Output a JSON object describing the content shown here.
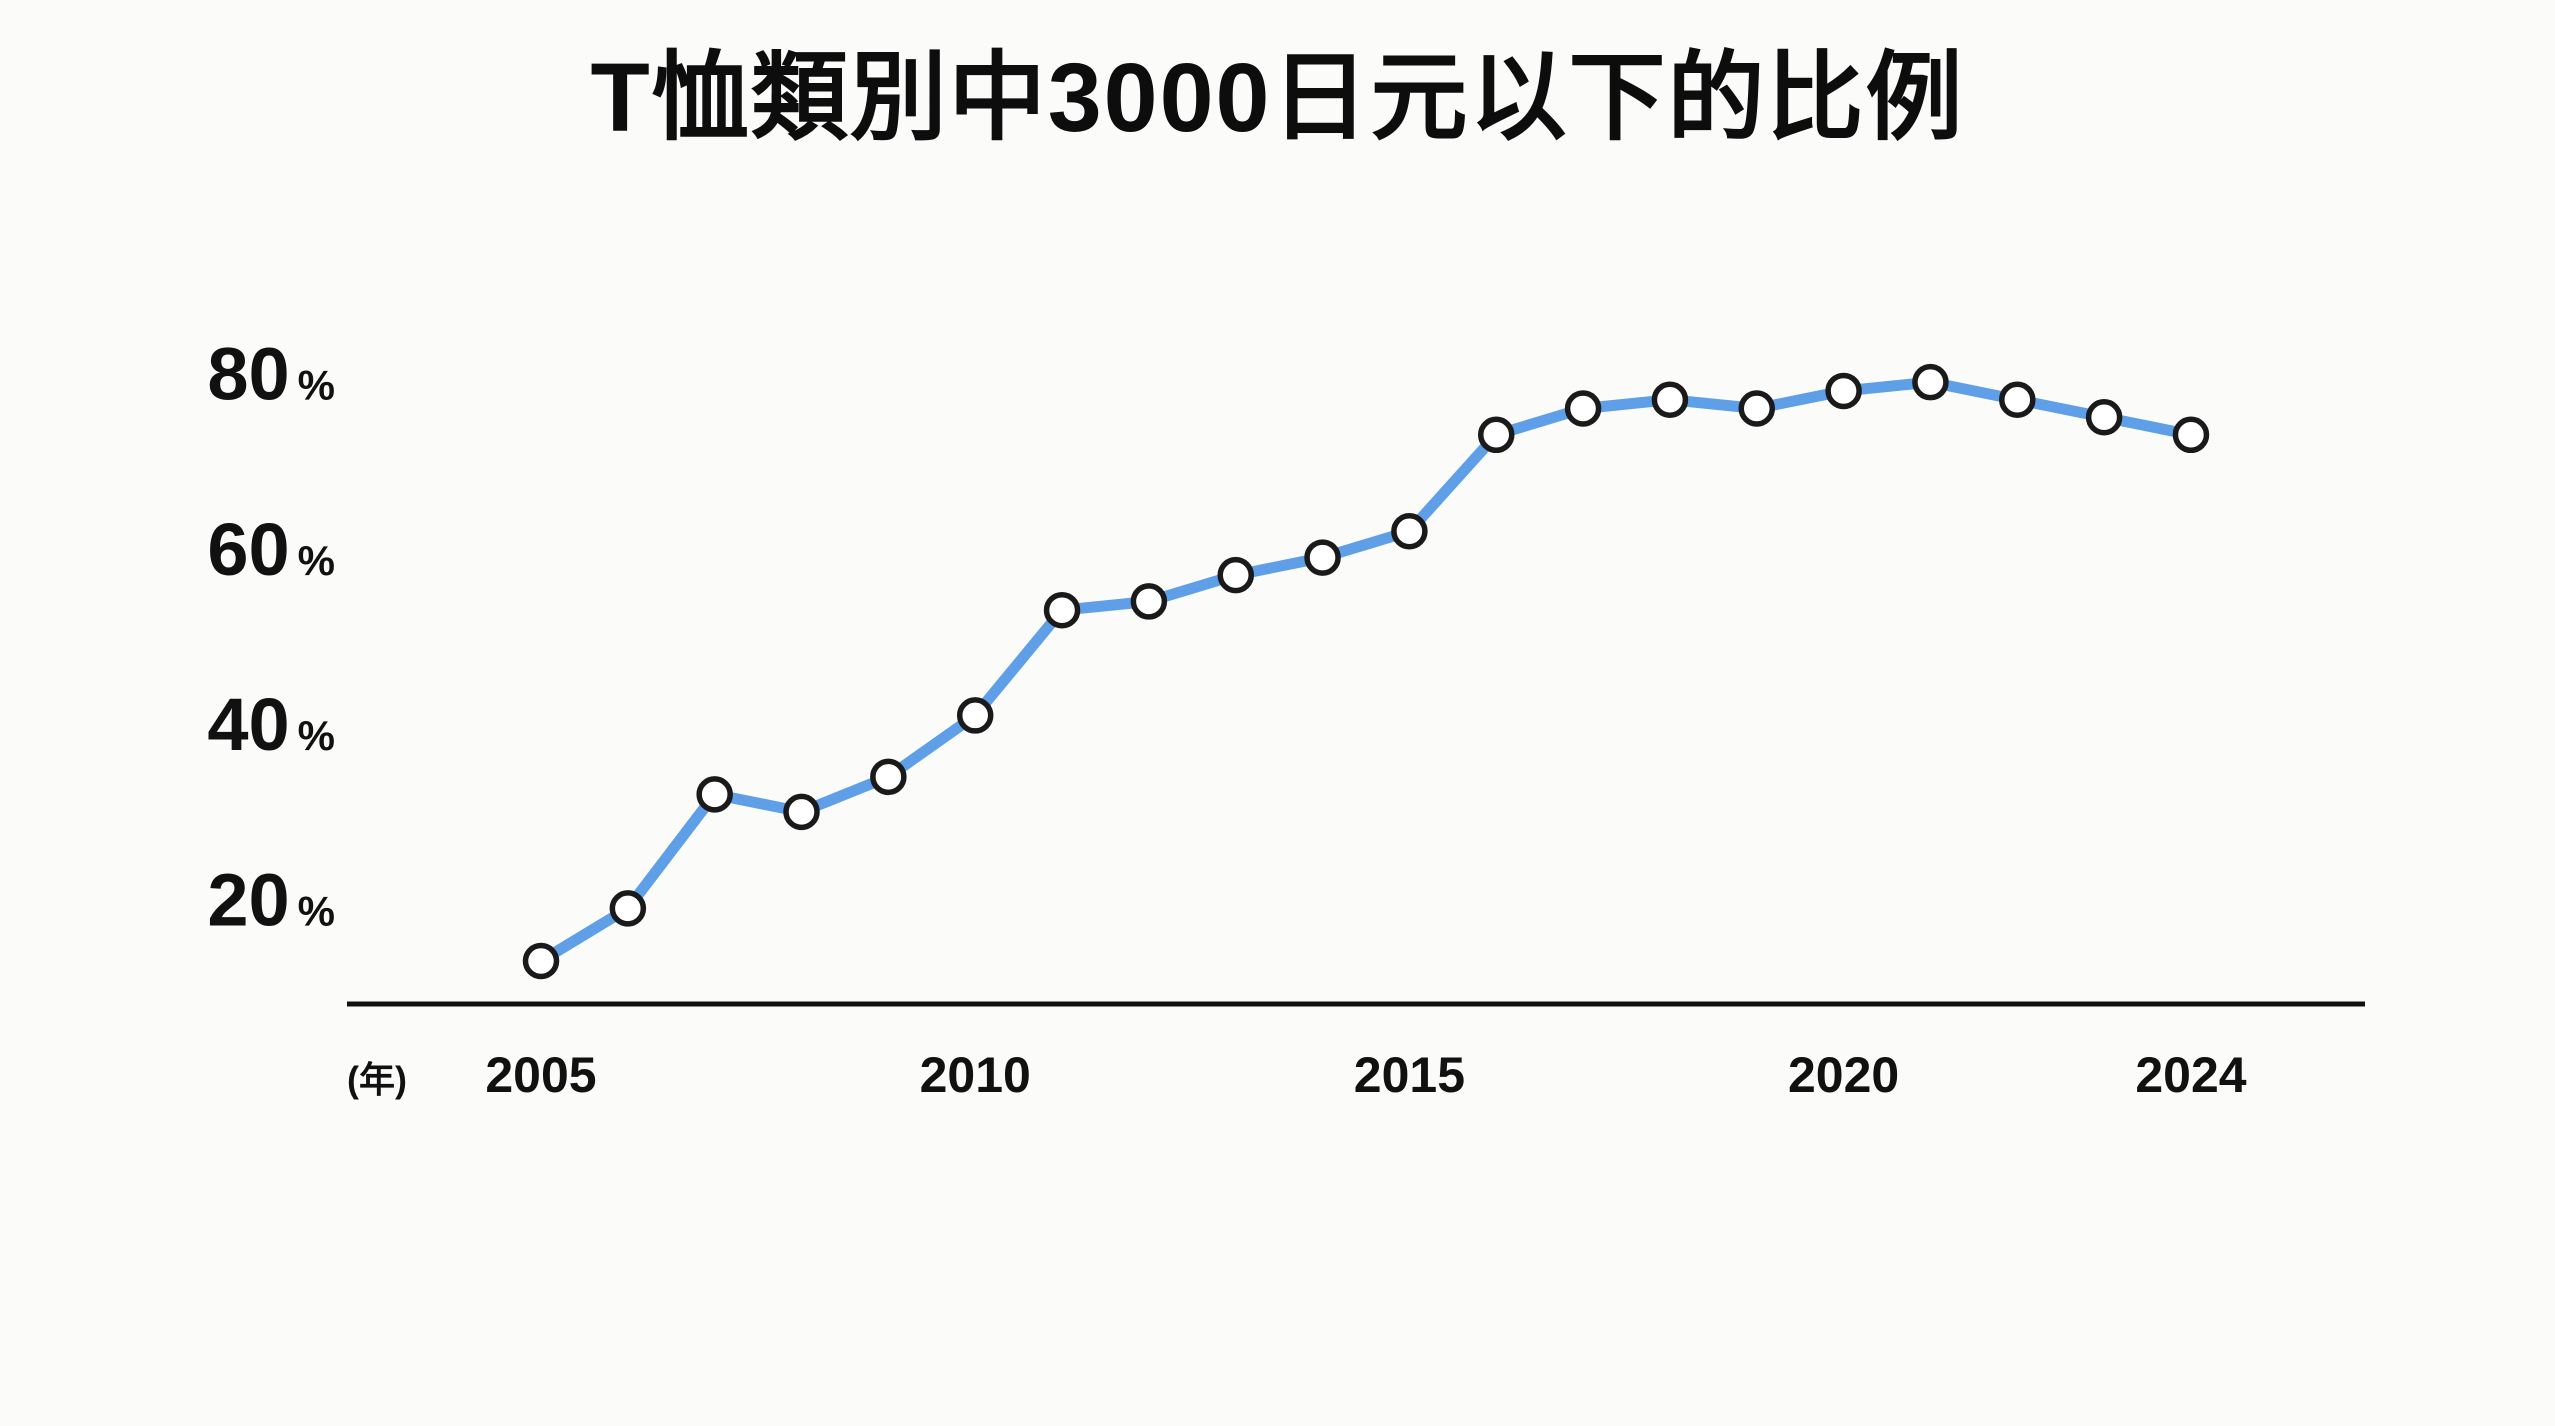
{
  "page": {
    "background_color": "#fbfbfa"
  },
  "chart": {
    "title": "T恤類別中3000日元以下的比例",
    "accent_color": "#5e9fe8",
    "point_fill_color": "#ffffff",
    "point_stroke_color": "#1a1a1a",
    "axis_color": "#111111",
    "text_color": "#111111"
  },
  "chart_data": {
    "type": "line",
    "title": "T恤類別中3000日元以下的比例",
    "xlabel": "(年)",
    "ylabel": "%",
    "x": [
      2005,
      2006,
      2007,
      2008,
      2009,
      2010,
      2011,
      2012,
      2013,
      2014,
      2015,
      2016,
      2017,
      2018,
      2019,
      2020,
      2021,
      2022,
      2023,
      2024
    ],
    "values": [
      13,
      19,
      32,
      30,
      34,
      41,
      53,
      54,
      57,
      59,
      62,
      73,
      76,
      77,
      76,
      78,
      79,
      77,
      75,
      73
    ],
    "x_ticks": [
      2005,
      2010,
      2015,
      2020,
      2024
    ],
    "y_ticks": [
      80,
      60,
      40,
      20
    ],
    "y_tick_suffix": "%",
    "ylim": [
      8,
      85
    ],
    "grid": false,
    "legend": "none",
    "marker": "open-circle"
  }
}
